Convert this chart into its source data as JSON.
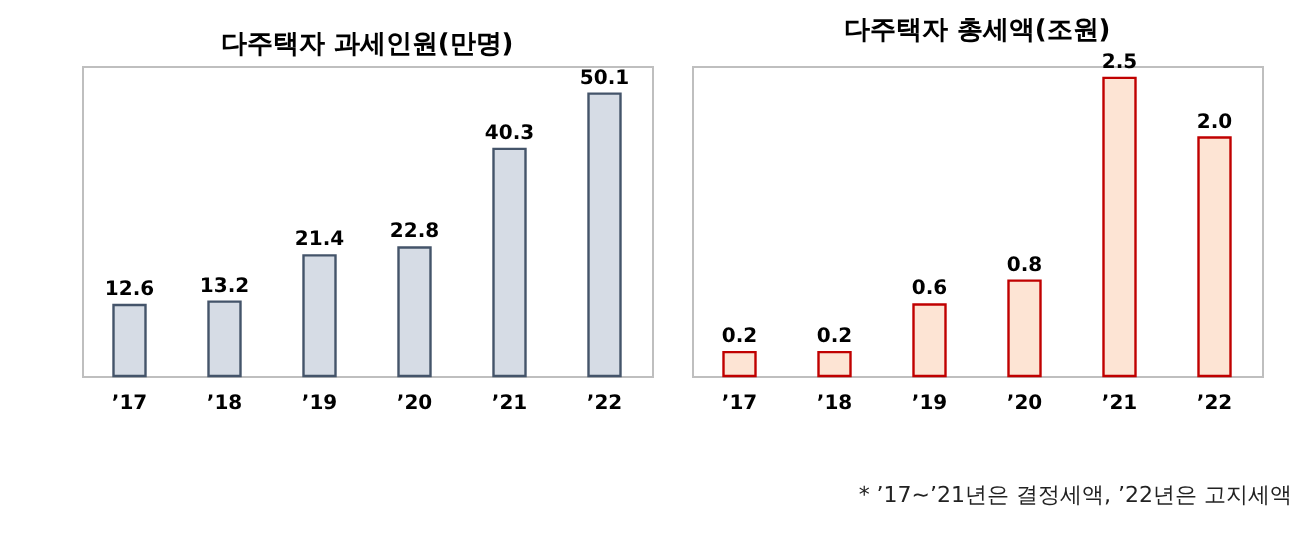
{
  "chart_data": [
    {
      "type": "bar",
      "title": "다주택자 과세인원(만명)",
      "categories": [
        "’17",
        "’18",
        "’19",
        "’20",
        "’21",
        "’22"
      ],
      "values": [
        12.6,
        13.2,
        21.4,
        22.8,
        40.3,
        50.1
      ],
      "color": "#d6dce5",
      "data_labels": true
    },
    {
      "type": "bar",
      "title": "다주택자 총세액(조원)",
      "categories": [
        "’17",
        "’18",
        "’19",
        "’20",
        "’21",
        "’22"
      ],
      "values": [
        0.2,
        0.2,
        0.6,
        0.8,
        2.5,
        2.0
      ],
      "color": "#fde4d4",
      "value_labels": [
        "0.2",
        "0.2",
        "0.6",
        "0.8",
        "2.5",
        "2.0"
      ],
      "annotations": [
        "* ’17~’21년은 결정세액, ’22년은 고지세액"
      ]
    }
  ]
}
